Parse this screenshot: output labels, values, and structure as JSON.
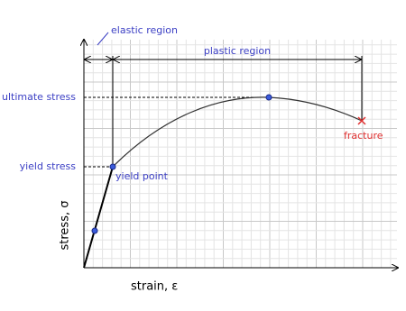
{
  "diagram": {
    "x_axis_label": "strain, ε",
    "y_axis_label": "stress, σ",
    "regions": {
      "elastic": "elastic region",
      "plastic": "plastic region"
    },
    "levels": {
      "ultimate": "ultimate stress",
      "yield": "yield stress"
    },
    "points": {
      "yield": "yield point",
      "fracture": "fracture"
    }
  }
}
